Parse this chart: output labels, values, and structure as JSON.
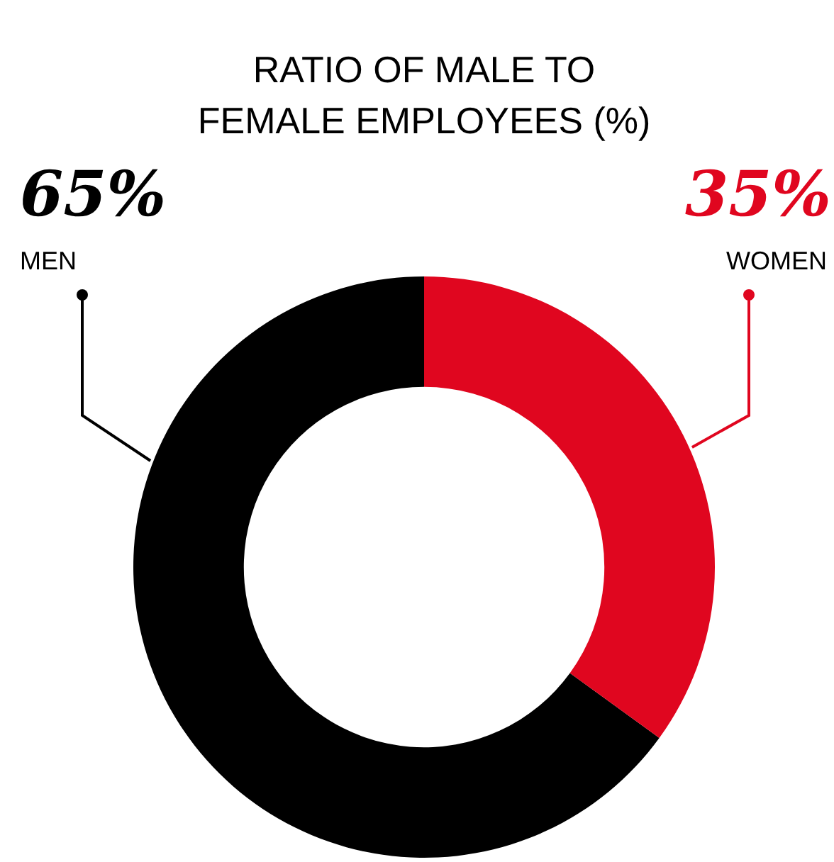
{
  "chart_data": {
    "type": "donut",
    "title": "RATIO OF MALE TO FEMALE EMPLOYEES (%)",
    "categories": [
      "MEN",
      "WOMEN"
    ],
    "values": [
      65,
      35
    ],
    "colors": [
      "#000000",
      "#e0061f"
    ],
    "value_labels": [
      "65%",
      "35%"
    ]
  }
}
